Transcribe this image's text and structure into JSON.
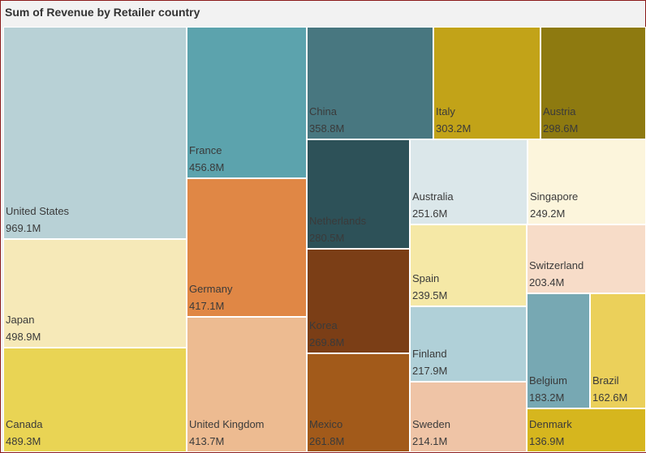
{
  "chart_data": {
    "type": "treemap",
    "title": "Sum of Revenue by Retailer country",
    "unit": "M",
    "items": [
      {
        "label": "United States",
        "value": "969.1M",
        "amount": 969.1,
        "color": "#b8d1d6"
      },
      {
        "label": "Japan",
        "value": "498.9M",
        "amount": 498.9,
        "color": "#f6e9b8"
      },
      {
        "label": "Canada",
        "value": "489.3M",
        "amount": 489.3,
        "color": "#e9d454"
      },
      {
        "label": "France",
        "value": "456.8M",
        "amount": 456.8,
        "color": "#5ca3ad"
      },
      {
        "label": "Germany",
        "value": "417.1M",
        "amount": 417.1,
        "color": "#e08745"
      },
      {
        "label": "United Kingdom",
        "value": "413.7M",
        "amount": 413.7,
        "color": "#edbb91"
      },
      {
        "label": "China",
        "value": "358.8M",
        "amount": 358.8,
        "color": "#487780"
      },
      {
        "label": "Italy",
        "value": "303.2M",
        "amount": 303.2,
        "color": "#c2a318"
      },
      {
        "label": "Austria",
        "value": "298.6M",
        "amount": 298.6,
        "color": "#8e7a10"
      },
      {
        "label": "Netherlands",
        "value": "280.5M",
        "amount": 280.5,
        "color": "#2d5158"
      },
      {
        "label": "Korea",
        "value": "269.8M",
        "amount": 269.8,
        "color": "#7b3e16"
      },
      {
        "label": "Mexico",
        "value": "261.8M",
        "amount": 261.8,
        "color": "#a25a1a"
      },
      {
        "label": "Australia",
        "value": "251.6M",
        "amount": 251.6,
        "color": "#dbe7ea"
      },
      {
        "label": "Singapore",
        "value": "249.2M",
        "amount": 249.2,
        "color": "#fcf5dc"
      },
      {
        "label": "Spain",
        "value": "239.5M",
        "amount": 239.5,
        "color": "#f5e8a6"
      },
      {
        "label": "Finland",
        "value": "217.9M",
        "amount": 217.9,
        "color": "#b0d0d8"
      },
      {
        "label": "Sweden",
        "value": "214.1M",
        "amount": 214.1,
        "color": "#efc4a6"
      },
      {
        "label": "Switzerland",
        "value": "203.4M",
        "amount": 203.4,
        "color": "#f7dcc8"
      },
      {
        "label": "Belgium",
        "value": "183.2M",
        "amount": 183.2,
        "color": "#77a8b3"
      },
      {
        "label": "Brazil",
        "value": "162.6M",
        "amount": 162.6,
        "color": "#ebd05a"
      },
      {
        "label": "Denmark",
        "value": "136.9M",
        "amount": 136.9,
        "color": "#d6b61e"
      }
    ]
  }
}
